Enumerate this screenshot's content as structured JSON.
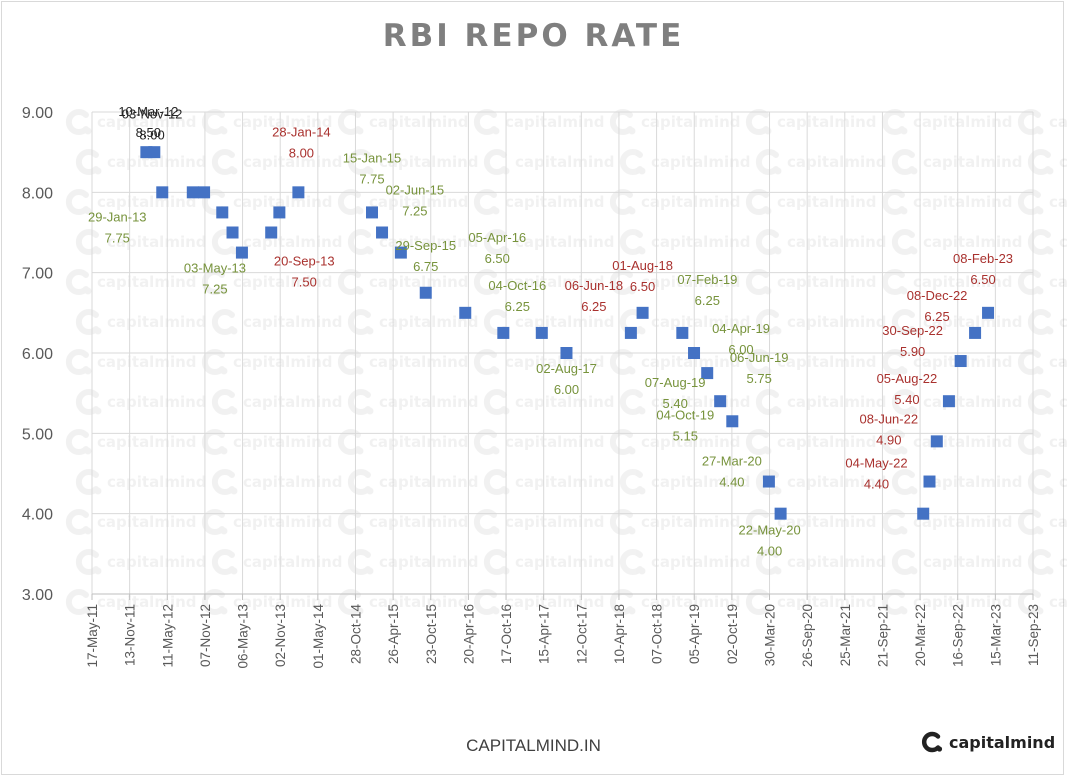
{
  "title": "RBI REPO RATE",
  "footer": "CAPITALMIND.IN",
  "brand": {
    "name": "capitalmind",
    "icon": "capitalmind-logo-icon"
  },
  "watermark": "capitalmind",
  "colors": {
    "marker": "#4472c4",
    "label_cut": "#77933c",
    "label_hike": "#a9312e",
    "label_neutral": "#262626",
    "grid": "#d9d9d9",
    "axis_text": "#595959",
    "title": "#7f7f7f"
  },
  "chart_data": {
    "type": "scatter",
    "title": "RBI REPO RATE",
    "xlabel": "",
    "ylabel": "",
    "ylim": [
      3.0,
      9.0
    ],
    "yticks": [
      "3.00",
      "4.00",
      "5.00",
      "6.00",
      "7.00",
      "8.00",
      "9.00"
    ],
    "xlim": [
      "2011-05-17",
      "2023-09-11"
    ],
    "xticks": [
      "17-May-11",
      "13-Nov-11",
      "11-May-12",
      "07-Nov-12",
      "06-May-13",
      "02-Nov-13",
      "01-May-14",
      "28-Oct-14",
      "26-Apr-15",
      "23-Oct-15",
      "20-Apr-16",
      "17-Oct-16",
      "15-Apr-17",
      "12-Oct-17",
      "10-Apr-18",
      "07-Oct-18",
      "05-Apr-19",
      "02-Oct-19",
      "30-Mar-20",
      "26-Sep-20",
      "25-Mar-21",
      "21-Sep-21",
      "20-Mar-22",
      "16-Sep-22",
      "15-Mar-23",
      "11-Sep-23"
    ],
    "grid": true,
    "legend": "none",
    "points": [
      {
        "date": "2012-02-01",
        "y": 8.5
      },
      {
        "date": "2012-03-10",
        "y": 8.5
      },
      {
        "date": "2012-04-17",
        "y": 8.0
      },
      {
        "date": "2012-09-10",
        "y": 8.0
      },
      {
        "date": "2012-11-03",
        "y": 8.0
      },
      {
        "date": "2013-01-29",
        "y": 7.75
      },
      {
        "date": "2013-03-19",
        "y": 7.5
      },
      {
        "date": "2013-05-03",
        "y": 7.25
      },
      {
        "date": "2013-09-20",
        "y": 7.5
      },
      {
        "date": "2013-10-29",
        "y": 7.75
      },
      {
        "date": "2014-01-28",
        "y": 8.0
      },
      {
        "date": "2015-01-15",
        "y": 7.75
      },
      {
        "date": "2015-03-04",
        "y": 7.5
      },
      {
        "date": "2015-06-02",
        "y": 7.25
      },
      {
        "date": "2015-09-29",
        "y": 6.75
      },
      {
        "date": "2016-04-05",
        "y": 6.5
      },
      {
        "date": "2016-10-04",
        "y": 6.25
      },
      {
        "date": "2017-04-06",
        "y": 6.25
      },
      {
        "date": "2017-08-02",
        "y": 6.0
      },
      {
        "date": "2018-06-06",
        "y": 6.25
      },
      {
        "date": "2018-08-01",
        "y": 6.5
      },
      {
        "date": "2019-02-07",
        "y": 6.25
      },
      {
        "date": "2019-04-04",
        "y": 6.0
      },
      {
        "date": "2019-06-06",
        "y": 5.75
      },
      {
        "date": "2019-08-07",
        "y": 5.4
      },
      {
        "date": "2019-10-04",
        "y": 5.15
      },
      {
        "date": "2020-03-27",
        "y": 4.4
      },
      {
        "date": "2020-05-22",
        "y": 4.0
      },
      {
        "date": "2022-04-04",
        "y": 4.0
      },
      {
        "date": "2022-05-04",
        "y": 4.4
      },
      {
        "date": "2022-06-08",
        "y": 4.9
      },
      {
        "date": "2022-08-05",
        "y": 5.4
      },
      {
        "date": "2022-09-30",
        "y": 5.9
      },
      {
        "date": "2022-12-08",
        "y": 6.25
      },
      {
        "date": "2023-02-08",
        "y": 6.5
      }
    ],
    "annotations": [
      {
        "date_text": "10-Mar-12",
        "value_text": "8.50",
        "point": 1,
        "tone": "neutral",
        "dx": -6,
        "dy": -36
      },
      {
        "date_text": "03-Nov-12",
        "value_text": "8.00",
        "point": 4,
        "tone": "neutral",
        "dx": -52,
        "dy": -74
      },
      {
        "date_text": "29-Jan-13",
        "value_text": "7.75",
        "point": 5,
        "tone": "cut",
        "dx": -105,
        "dy": 9
      },
      {
        "date_text": "03-May-13",
        "value_text": "7.25",
        "point": 7,
        "tone": "cut",
        "dx": -27,
        "dy": 20
      },
      {
        "date_text": "28-Jan-14",
        "value_text": "8.00",
        "point": 10,
        "tone": "hike",
        "dx": 3,
        "dy": -56
      },
      {
        "date_text": "20-Sep-13",
        "value_text": "7.50",
        "point": 8,
        "tone": "hike",
        "dx": 33,
        "dy": 33
      },
      {
        "date_text": "15-Jan-15",
        "value_text": "7.75",
        "point": 11,
        "tone": "cut",
        "dx": 0,
        "dy": -50
      },
      {
        "date_text": "02-Jun-15",
        "value_text": "7.25",
        "point": 13,
        "tone": "cut",
        "dx": 14,
        "dy": -58
      },
      {
        "date_text": "29-Sep-15",
        "value_text": "6.75",
        "point": 14,
        "tone": "cut",
        "dx": 0,
        "dy": -43
      },
      {
        "date_text": "05-Apr-16",
        "value_text": "6.50",
        "point": 15,
        "tone": "cut",
        "dx": 32,
        "dy": -71
      },
      {
        "date_text": "04-Oct-16",
        "value_text": "6.25",
        "point": 16,
        "tone": "cut",
        "dx": 14,
        "dy": -43
      },
      {
        "date_text": "06-Jun-18",
        "value_text": "6.25",
        "point": 19,
        "tone": "hike",
        "dx": -37,
        "dy": -43
      },
      {
        "date_text": "01-Aug-18",
        "value_text": "6.50",
        "point": 20,
        "tone": "hike",
        "dx": 0,
        "dy": -43
      },
      {
        "date_text": "02-Aug-17",
        "value_text": "6.00",
        "point": 18,
        "tone": "cut",
        "dx": 0,
        "dy": 20
      },
      {
        "date_text": "07-Feb-19",
        "value_text": "6.25",
        "point": 21,
        "tone": "cut",
        "dx": 25,
        "dy": -49
      },
      {
        "date_text": "04-Apr-19",
        "value_text": "6.00",
        "point": 22,
        "tone": "cut",
        "dx": 47,
        "dy": -20
      },
      {
        "date_text": "06-Jun-19",
        "value_text": "5.75",
        "point": 23,
        "tone": "cut",
        "dx": 52,
        "dy": -11
      },
      {
        "date_text": "07-Aug-19",
        "value_text": "5.40",
        "point": 24,
        "tone": "cut",
        "dx": -45,
        "dy": -14
      },
      {
        "date_text": "04-Oct-19",
        "value_text": "5.15",
        "point": 25,
        "tone": "cut",
        "dx": -47,
        "dy": -2
      },
      {
        "date_text": "27-Mar-20",
        "value_text": "4.40",
        "point": 26,
        "tone": "cut",
        "dx": -37,
        "dy": -16
      },
      {
        "date_text": "22-May-20",
        "value_text": "4.00",
        "point": 27,
        "tone": "cut",
        "dx": -11,
        "dy": 21
      },
      {
        "date_text": "04-May-22",
        "value_text": "4.40",
        "point": 29,
        "tone": "hike",
        "dx": -53,
        "dy": -14
      },
      {
        "date_text": "08-Jun-22",
        "value_text": "4.90",
        "point": 30,
        "tone": "hike",
        "dx": -48,
        "dy": -18
      },
      {
        "date_text": "05-Aug-22",
        "value_text": "5.40",
        "point": 31,
        "tone": "hike",
        "dx": -42,
        "dy": -18
      },
      {
        "date_text": "30-Sep-22",
        "value_text": "5.90",
        "point": 32,
        "tone": "hike",
        "dx": -48,
        "dy": -26
      },
      {
        "date_text": "08-Dec-22",
        "value_text": "6.25",
        "point": 33,
        "tone": "hike",
        "dx": -38,
        "dy": -33
      },
      {
        "date_text": "08-Feb-23",
        "value_text": "6.50",
        "point": 34,
        "tone": "hike",
        "dx": -5,
        "dy": -50
      }
    ]
  }
}
